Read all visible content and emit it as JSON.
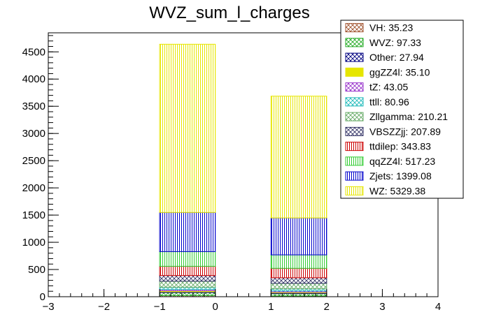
{
  "chart_data": {
    "type": "bar",
    "stacked": true,
    "title": "WVZ_sum_l_charges",
    "xlabel": "",
    "ylabel": "",
    "xlim": [
      -3,
      4
    ],
    "ylim": [
      0,
      4850
    ],
    "x_ticks": [
      -3,
      -2,
      -1,
      0,
      1,
      2,
      3,
      4
    ],
    "y_ticks": [
      0,
      500,
      1000,
      1500,
      2000,
      2500,
      3000,
      3500,
      4000,
      4500
    ],
    "bins": [
      [
        -1,
        0
      ],
      [
        1,
        2
      ]
    ],
    "legend_position": "top-right",
    "series": [
      {
        "name": "VH",
        "legend": "VH: 35.23",
        "color": "#a0522d",
        "pattern": "crosshatch",
        "values": [
          20,
          15
        ]
      },
      {
        "name": "WVZ",
        "legend": "WVZ: 97.33",
        "color": "#22aa22",
        "pattern": "crosshatch",
        "values": [
          55,
          42
        ]
      },
      {
        "name": "Other",
        "legend": "Other: 27.94",
        "color": "#000080",
        "pattern": "crosshatch",
        "values": [
          15,
          13
        ]
      },
      {
        "name": "ggZZ4l",
        "legend": "ggZZ4l: 35.10",
        "color": "#e6e600",
        "pattern": "solid",
        "values": [
          20,
          15
        ]
      },
      {
        "name": "tZ",
        "legend": "tZ: 43.05",
        "color": "#9933cc",
        "pattern": "crosshatch",
        "values": [
          24,
          19
        ]
      },
      {
        "name": "ttll",
        "legend": "ttll: 80.96",
        "color": "#22bbbb",
        "pattern": "crosshatch",
        "values": [
          40,
          41
        ]
      },
      {
        "name": "Zllgamma",
        "legend": "Zllgamma: 210.21",
        "color": "#66aa66",
        "pattern": "crosshatch",
        "values": [
          110,
          100
        ]
      },
      {
        "name": "VBSZZjj",
        "legend": "VBSZZjj: 207.89",
        "color": "#333366",
        "pattern": "crosshatch",
        "values": [
          105,
          103
        ]
      },
      {
        "name": "ttdilep",
        "legend": "ttdilep: 343.83",
        "color": "#cc0000",
        "pattern": "vertical",
        "values": [
          170,
          174
        ]
      },
      {
        "name": "qqZZ4l",
        "legend": "qqZZ4l: 517.23",
        "color": "#33cc33",
        "pattern": "vertical",
        "values": [
          270,
          247
        ]
      },
      {
        "name": "Zjets",
        "legend": "Zjets: 1399.08",
        "color": "#0000cc",
        "pattern": "vertical",
        "values": [
          720,
          679
        ]
      },
      {
        "name": "WZ",
        "legend": "WZ: 5329.38",
        "color": "#e6e600",
        "pattern": "vertical",
        "values": [
          3091,
          2238
        ]
      }
    ]
  }
}
